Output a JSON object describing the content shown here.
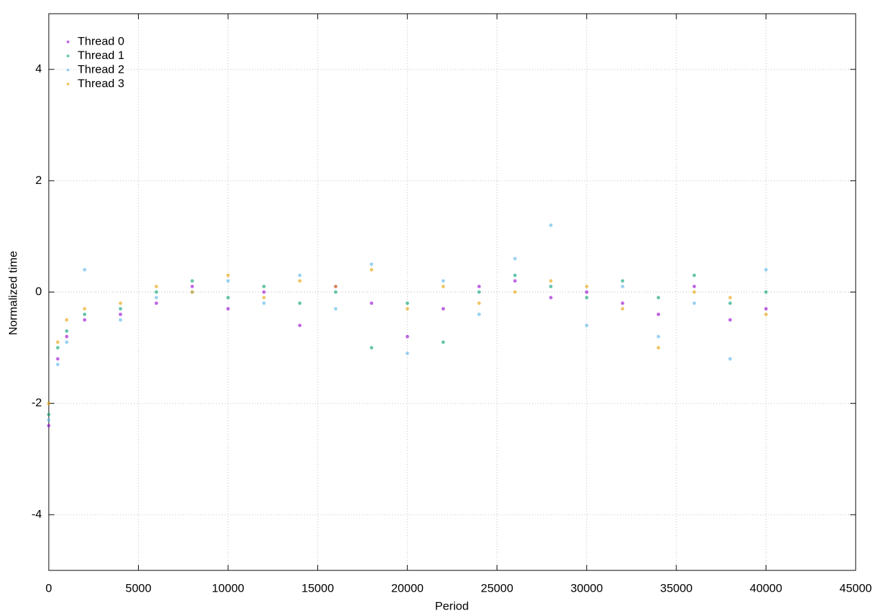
{
  "chart_data": {
    "type": "scatter",
    "x_label": "Period",
    "y_label": "Normalized time",
    "x": [
      0,
      500,
      1000,
      2000,
      4000,
      6000,
      8000,
      10000,
      12000,
      14000,
      16000,
      18000,
      20000,
      22000,
      24000,
      26000,
      28000,
      30000,
      32000,
      34000,
      36000,
      38000,
      40000
    ],
    "series": [
      {
        "name": "Thread 0",
        "color": "#9400d3",
        "values": [
          -2.4,
          -1.2,
          -0.8,
          -0.5,
          -0.4,
          -0.2,
          0.1,
          -0.3,
          0.0,
          -0.6,
          0.1,
          -0.2,
          -0.8,
          -0.3,
          0.1,
          0.2,
          -0.1,
          0.0,
          -0.2,
          -0.4,
          0.1,
          -0.5,
          -0.3
        ]
      },
      {
        "name": "Thread 1",
        "color": "#009e73",
        "values": [
          -2.2,
          -1.0,
          -0.7,
          -0.4,
          -0.3,
          0.0,
          0.2,
          -0.1,
          0.1,
          -0.2,
          0.0,
          -1.0,
          -0.2,
          -0.9,
          0.0,
          0.3,
          0.1,
          -0.1,
          0.2,
          -0.1,
          0.3,
          -0.2,
          0.0
        ]
      },
      {
        "name": "Thread 2",
        "color": "#56b4e9",
        "values": [
          -2.3,
          -1.3,
          -0.9,
          0.4,
          -0.5,
          -0.1,
          0.0,
          0.2,
          -0.2,
          0.3,
          -0.3,
          0.5,
          -1.1,
          0.2,
          -0.4,
          0.6,
          1.2,
          -0.6,
          0.1,
          -0.8,
          -0.2,
          -1.2,
          0.4
        ]
      },
      {
        "name": "Thread 3",
        "color": "#e69f00",
        "values": [
          -2.0,
          -0.9,
          -0.5,
          -0.3,
          -0.2,
          0.1,
          0.0,
          0.3,
          -0.1,
          0.2,
          0.1,
          0.4,
          -0.3,
          0.1,
          -0.2,
          0.0,
          0.2,
          0.1,
          -0.3,
          -1.0,
          0.0,
          -0.1,
          -0.4
        ]
      }
    ],
    "xlim": [
      0,
      45000
    ],
    "xticks": [
      0,
      5000,
      10000,
      15000,
      20000,
      25000,
      30000,
      35000,
      40000,
      45000
    ],
    "ylim": [
      -5,
      5
    ],
    "yticks": [
      -4,
      -2,
      0,
      2,
      4
    ],
    "grid": true,
    "legend": "top-left"
  }
}
